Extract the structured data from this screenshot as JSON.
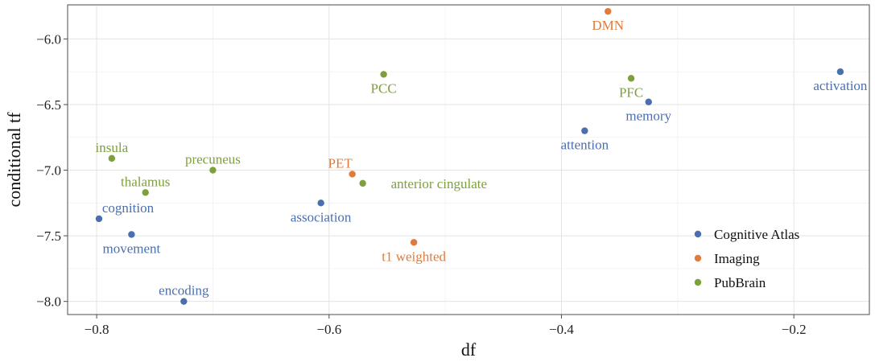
{
  "chart_data": {
    "type": "scatter",
    "title": "",
    "xlabel": "df",
    "ylabel": "conditional tf",
    "xlim": [
      -0.825,
      -0.135
    ],
    "ylim": [
      -8.1,
      -5.74
    ],
    "xticks": [
      -0.8,
      -0.6,
      -0.4,
      -0.2
    ],
    "xtick_labels": [
      "−0.8",
      "−0.6",
      "−0.4",
      "−0.2"
    ],
    "yticks": [
      -8.0,
      -7.5,
      -7.0,
      -6.5,
      -6.0
    ],
    "ytick_labels": [
      "−8.0",
      "−7.5",
      "−7.0",
      "−6.5",
      "−6.0"
    ],
    "grid": true,
    "legend": {
      "placement": "bottom-right"
    },
    "series": [
      {
        "name": "Cognitive Atlas",
        "color": "#4a6fae",
        "points": [
          {
            "label": "activation",
            "x": -0.16,
            "y": -6.25,
            "label_pos": "below"
          },
          {
            "label": "memory",
            "x": -0.325,
            "y": -6.48,
            "label_pos": "below"
          },
          {
            "label": "attention",
            "x": -0.38,
            "y": -6.7,
            "label_pos": "below"
          },
          {
            "label": "association",
            "x": -0.607,
            "y": -7.25,
            "label_pos": "below"
          },
          {
            "label": "cognition",
            "x": -0.798,
            "y": -7.37,
            "label_pos": "above-right"
          },
          {
            "label": "movement",
            "x": -0.77,
            "y": -7.49,
            "label_pos": "below"
          },
          {
            "label": "encoding",
            "x": -0.725,
            "y": -8.0,
            "label_pos": "above"
          }
        ]
      },
      {
        "name": "Imaging",
        "color": "#e07b3c",
        "points": [
          {
            "label": "DMN",
            "x": -0.36,
            "y": -5.79,
            "label_pos": "below"
          },
          {
            "label": "PET",
            "x": -0.58,
            "y": -7.03,
            "label_pos": "above-left"
          },
          {
            "label": "t1 weighted",
            "x": -0.527,
            "y": -7.55,
            "label_pos": "below"
          }
        ]
      },
      {
        "name": "PubBrain",
        "color": "#7ea03c",
        "points": [
          {
            "label": "PCC",
            "x": -0.553,
            "y": -6.27,
            "label_pos": "below"
          },
          {
            "label": "PFC",
            "x": -0.34,
            "y": -6.3,
            "label_pos": "below"
          },
          {
            "label": "insula",
            "x": -0.787,
            "y": -6.91,
            "label_pos": "above"
          },
          {
            "label": "precuneus",
            "x": -0.7,
            "y": -7.0,
            "label_pos": "above"
          },
          {
            "label": "anterior cingulate",
            "x": -0.571,
            "y": -7.1,
            "label_pos": "right"
          },
          {
            "label": "thalamus",
            "x": -0.758,
            "y": -7.17,
            "label_pos": "above"
          }
        ]
      }
    ]
  }
}
